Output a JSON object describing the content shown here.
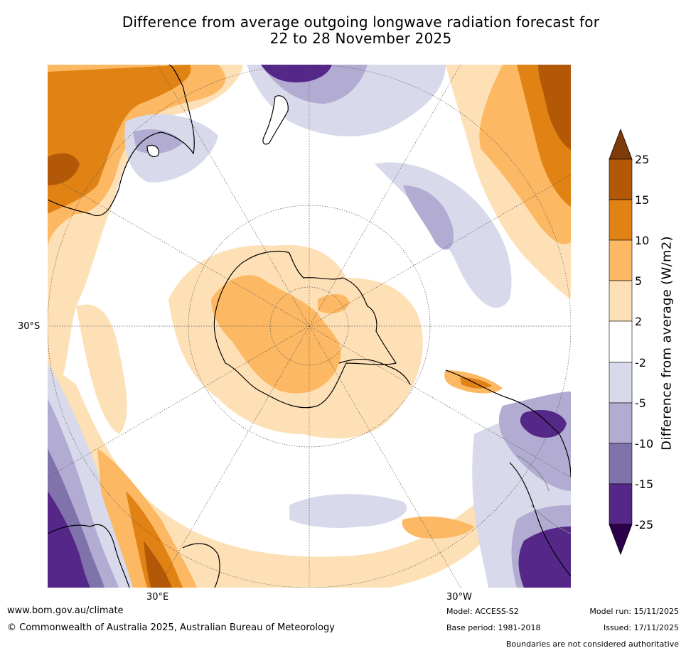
{
  "title": {
    "line1": "Difference from average outgoing longwave radiation forecast for",
    "line2": "22 to 28 November 2025"
  },
  "map": {
    "projection": "south-polar-stereographic",
    "lat_label_30s": "30°S",
    "lon_label_30e": "30°E",
    "lon_label_30w": "30°W"
  },
  "colorbar": {
    "label": "Difference from average (W/m2)",
    "ticks": [
      "25",
      "15",
      "10",
      "5",
      "2",
      "-2",
      "-5",
      "-10",
      "-15",
      "-25"
    ],
    "colors": {
      "gt25": "#7f3b08",
      "15_25": "#b35806",
      "10_15": "#e08214",
      "5_10": "#fdb863",
      "2_5": "#fee0b6",
      "neutral": "#ffffff",
      "m5_m2": "#d8daeb",
      "m10_m5": "#b2abd2",
      "m15_m10": "#8073ac",
      "m25_m15": "#542788",
      "lt_m25": "#2d004b"
    }
  },
  "footer": {
    "website": "www.bom.gov.au/climate",
    "copyright": "© Commonwealth of Australia 2025, Australian Bureau of Meteorology",
    "model": "Model: ACCESS-S2",
    "base_period": "Base period: 1981-2018",
    "model_run": "Model run: 15/11/2025",
    "issued": "Issued: 17/11/2025",
    "disclaimer": "Boundaries are not considered authoritative"
  }
}
